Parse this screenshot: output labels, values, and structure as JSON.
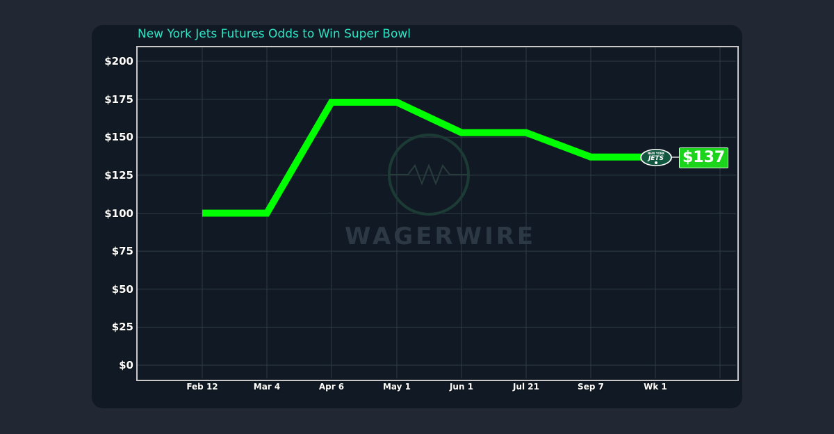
{
  "title": "New York Jets Futures Odds to Win Super Bowl",
  "watermark": "WAGERWIRE",
  "current_badge": "$137",
  "team_logo": {
    "top_text": "NEW YORK",
    "main_text": "JETS"
  },
  "colors": {
    "background": "#212733",
    "card": "#111a24",
    "title": "#2fe3c4",
    "line": "#00ff00",
    "badge": "#1bd41b",
    "grid": "#2e3a45",
    "logo_green": "#125740"
  },
  "y_ticks": [
    "$200",
    "$175",
    "$150",
    "$125",
    "$100",
    "$75",
    "$50",
    "$25",
    "$0"
  ],
  "x_ticks": [
    "Feb 12",
    "Mar 4",
    "Apr 6",
    "May 1",
    "Jun 1",
    "Jul 21",
    "Sep 7",
    "Wk 1"
  ],
  "chart_data": {
    "type": "line",
    "title": "New York Jets Futures Odds to Win Super Bowl",
    "xlabel": "",
    "ylabel": "",
    "categories": [
      "Feb 12",
      "Mar 4",
      "Apr 6",
      "May 1",
      "Jun 1",
      "Jul 21",
      "Sep 7",
      "Wk 1"
    ],
    "series": [
      {
        "name": "New York Jets odds",
        "values": [
          100,
          100,
          173,
          173,
          153,
          153,
          137,
          137
        ]
      }
    ],
    "ylim": [
      -10,
      210
    ],
    "yticks": [
      0,
      25,
      50,
      75,
      100,
      125,
      150,
      175,
      200
    ],
    "grid": true,
    "legend": "none",
    "annotations": [
      "$137 (current value badge)",
      "New York Jets logo marker at last point",
      "WAGERWIRE watermark"
    ]
  }
}
